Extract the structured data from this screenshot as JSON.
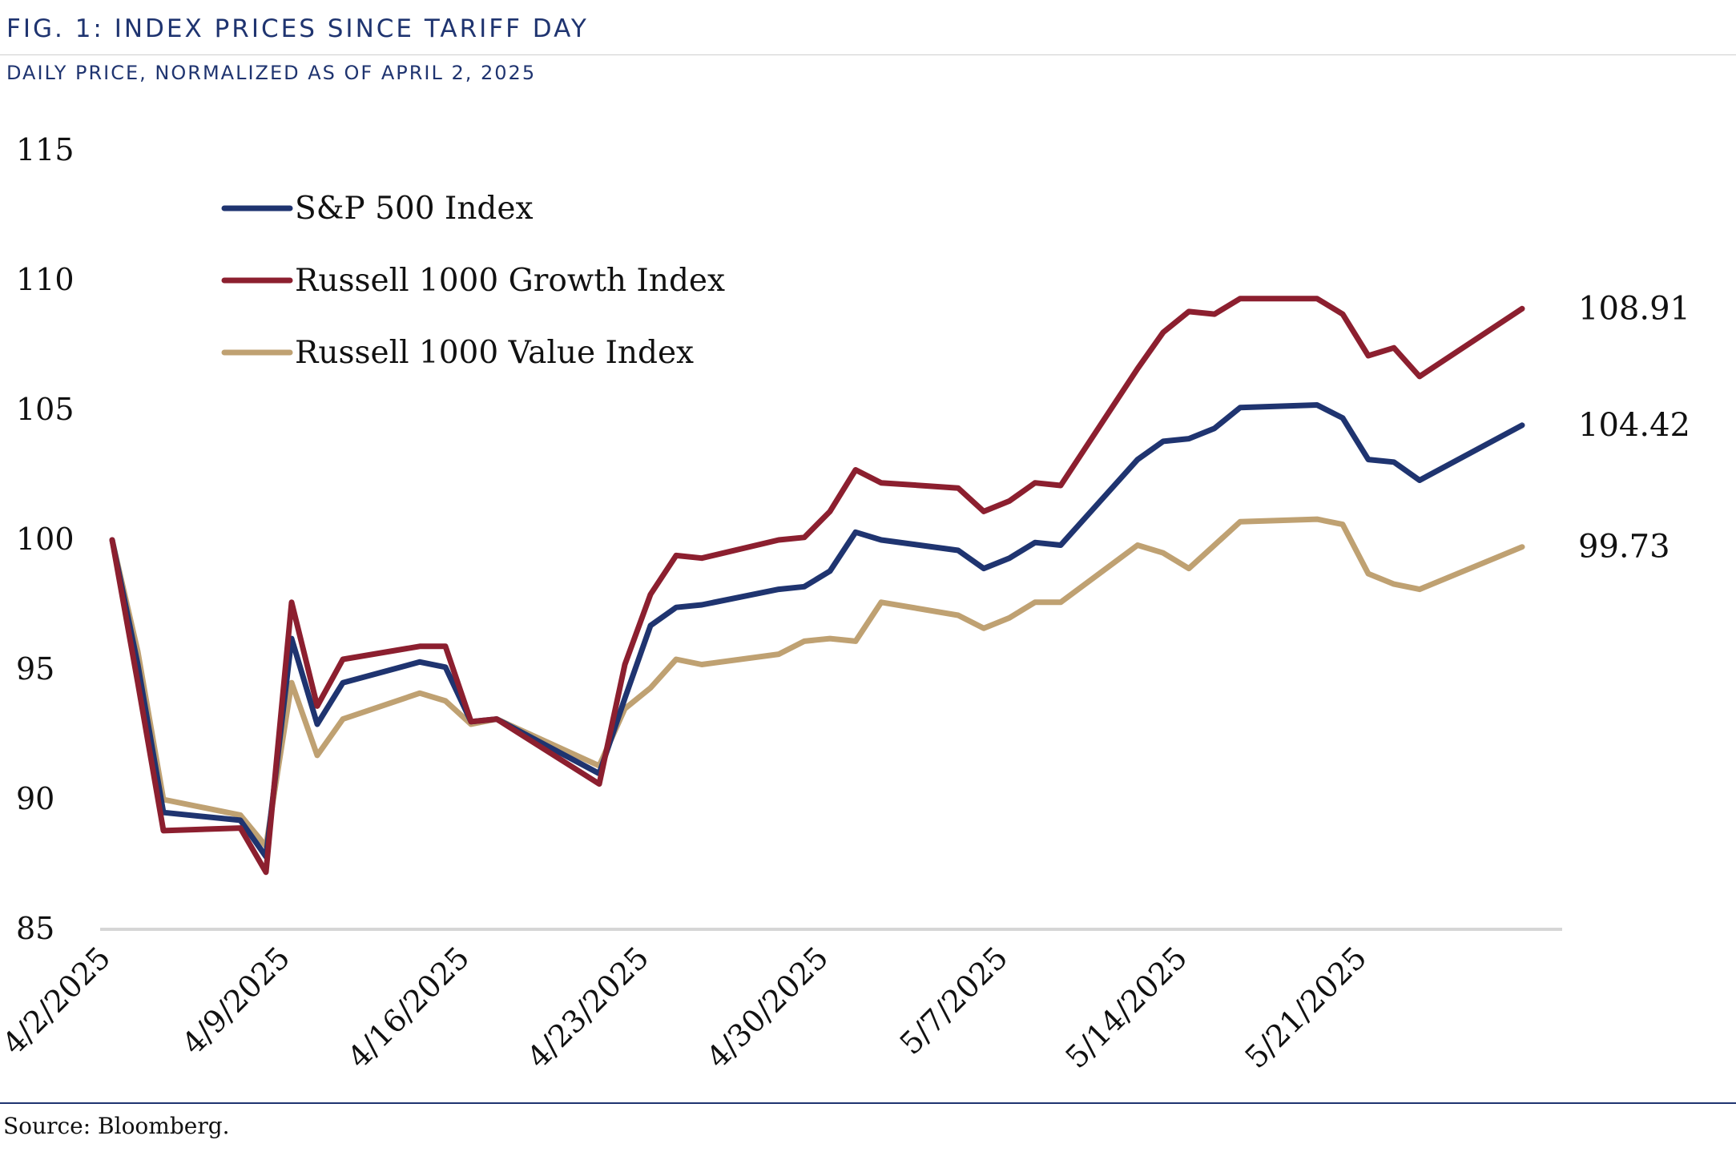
{
  "header": {
    "title": "FIG. 1: INDEX PRICES SINCE TARIFF DAY",
    "subtitle": "DAILY PRICE, NORMALIZED AS OF APRIL 2, 2025"
  },
  "footer": {
    "source": "Source: Bloomberg."
  },
  "chart_data": {
    "type": "line",
    "title": "FIG. 1: INDEX PRICES SINCE TARIFF DAY",
    "subtitle": "DAILY PRICE, NORMALIZED AS OF APRIL 2, 2025",
    "xlabel": "",
    "ylabel": "",
    "ylim": [
      85,
      115
    ],
    "yticks": [
      85,
      90,
      95,
      100,
      105,
      110,
      115
    ],
    "xlim": [
      "2025-04-02",
      "2025-05-28"
    ],
    "xticks": [
      "4/2/2025",
      "4/9/2025",
      "4/16/2025",
      "4/23/2025",
      "4/30/2025",
      "5/7/2025",
      "5/14/2025",
      "5/21/2025"
    ],
    "grid": false,
    "legend_position": "top-left",
    "x": [
      "2025-04-02",
      "2025-04-03",
      "2025-04-04",
      "2025-04-07",
      "2025-04-08",
      "2025-04-09",
      "2025-04-10",
      "2025-04-11",
      "2025-04-14",
      "2025-04-15",
      "2025-04-16",
      "2025-04-17",
      "2025-04-21",
      "2025-04-22",
      "2025-04-23",
      "2025-04-24",
      "2025-04-25",
      "2025-04-28",
      "2025-04-29",
      "2025-04-30",
      "2025-05-01",
      "2025-05-02",
      "2025-05-05",
      "2025-05-06",
      "2025-05-07",
      "2025-05-08",
      "2025-05-09",
      "2025-05-12",
      "2025-05-13",
      "2025-05-14",
      "2025-05-15",
      "2025-05-16",
      "2025-05-19",
      "2025-05-20",
      "2025-05-21",
      "2025-05-22",
      "2025-05-23",
      "2025-05-27"
    ],
    "series": [
      {
        "name": "S&P 500 Index",
        "color": "#1f3470",
        "values": [
          100,
          95.2,
          89.5,
          89.2,
          87.8,
          96.2,
          92.9,
          94.5,
          95.3,
          95.1,
          93.0,
          93.1,
          91.0,
          93.9,
          96.7,
          97.4,
          97.5,
          98.1,
          98.2,
          98.8,
          100.3,
          100.0,
          99.6,
          98.9,
          99.3,
          99.9,
          99.8,
          103.1,
          103.8,
          103.9,
          104.3,
          105.1,
          105.2,
          104.7,
          103.1,
          103.0,
          102.3,
          104.42
        ],
        "end_label": "104.42"
      },
      {
        "name": "Russell 1000 Growth Index",
        "color": "#8c1f2f",
        "values": [
          100,
          94.5,
          88.8,
          88.9,
          87.2,
          97.6,
          93.6,
          95.4,
          95.9,
          95.9,
          93.0,
          93.1,
          90.6,
          95.2,
          97.9,
          99.4,
          99.3,
          100.0,
          100.1,
          101.1,
          102.7,
          102.2,
          102.0,
          101.1,
          101.5,
          102.2,
          102.1,
          106.6,
          108.0,
          108.8,
          108.7,
          109.3,
          109.3,
          108.7,
          107.1,
          107.4,
          106.3,
          108.91
        ],
        "end_label": "108.91"
      },
      {
        "name": "Russell 1000 Value Index",
        "color": "#bfa172",
        "values": [
          100,
          95.7,
          90.0,
          89.4,
          88.2,
          94.5,
          91.7,
          93.1,
          94.1,
          93.8,
          92.9,
          93.1,
          91.3,
          93.5,
          94.3,
          95.4,
          95.2,
          95.6,
          96.1,
          96.2,
          96.1,
          97.6,
          97.1,
          96.6,
          97.0,
          97.6,
          97.6,
          99.8,
          99.5,
          98.9,
          99.8,
          100.7,
          100.8,
          100.6,
          98.7,
          98.3,
          98.1,
          99.73
        ],
        "end_label": "99.73"
      }
    ]
  }
}
